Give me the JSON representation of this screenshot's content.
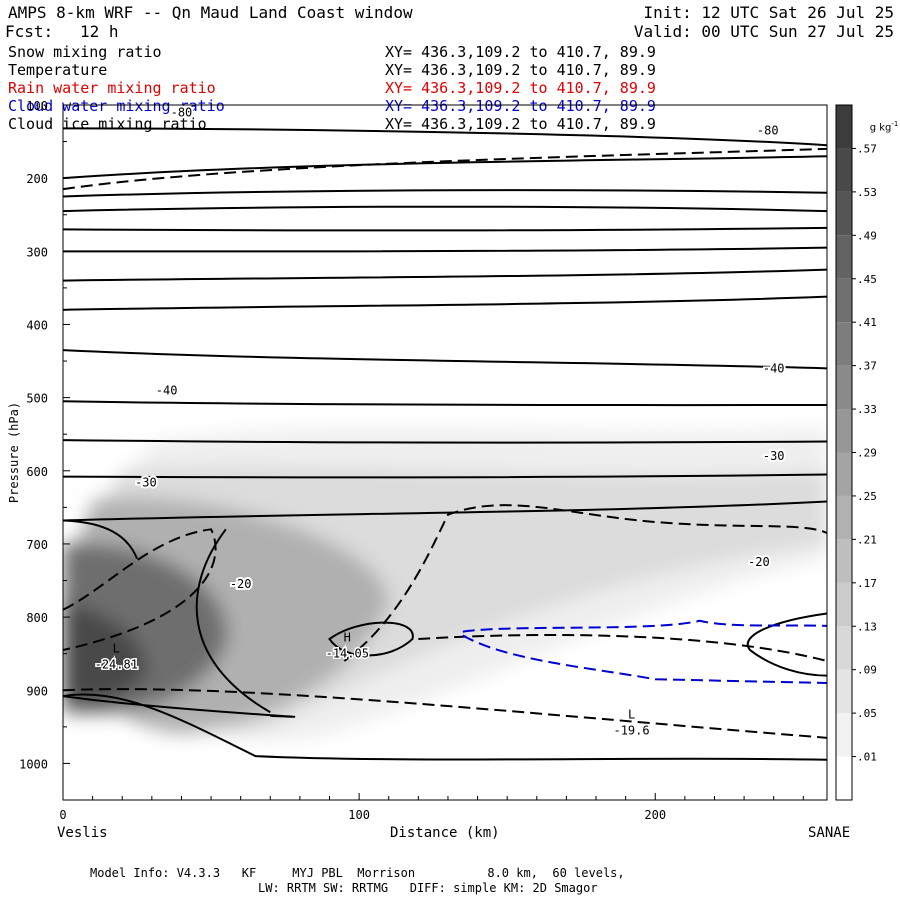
{
  "header": {
    "title": "AMPS 8-km WRF -- Qn Maud Land Coast window",
    "init": "Init: 12 UTC Sat 26 Jul 25",
    "fcst_label": "Fcst:",
    "fcst_value": "12 h",
    "valid": "Valid: 00 UTC Sun 27 Jul 25"
  },
  "fields": [
    {
      "name": "Snow mixing ratio",
      "xy": "XY= 436.3,109.2 to 410.7, 89.9",
      "color": "#000000"
    },
    {
      "name": "Temperature",
      "xy": "XY= 436.3,109.2 to 410.7, 89.9",
      "color": "#000000"
    },
    {
      "name": "Rain water mixing ratio",
      "xy": "XY= 436.3,109.2 to 410.7, 89.9",
      "color": "#e00000"
    },
    {
      "name": "Cloud water mixing ratio",
      "xy": "XY= 436.3,109.2 to 410.7, 89.9",
      "color": "#0000d0"
    },
    {
      "name": "Cloud ice mixing ratio",
      "xy": "XY= 436.3,109.2 to 410.7, 89.9",
      "color": "#000000"
    }
  ],
  "footer": {
    "line1": "Model Info: V4.3.3   KF     MYJ PBL  Morrison          8.0 km,  60 levels,",
    "line2": "LW: RRTM SW: RRTMG   DIFF: simple KM: 2D Smagor"
  },
  "chart_data": {
    "type": "contour",
    "xlabel": "Distance (km)",
    "ylabel": "Pressure (hPa)",
    "xlim": [
      0,
      258
    ],
    "ylim": [
      1050,
      100
    ],
    "x_ticks": [
      0,
      100,
      200
    ],
    "y_ticks": [
      100,
      200,
      300,
      400,
      500,
      600,
      700,
      800,
      900,
      1000
    ],
    "endpoint_labels": {
      "left": "Veslis",
      "right": "SANAE"
    },
    "colorbar": {
      "unit": "g kg",
      "unit_exp": "-1",
      "levels": [
        ".01",
        ".05",
        ".09",
        ".13",
        ".17",
        ".21",
        ".25",
        ".29",
        ".33",
        ".37",
        ".41",
        ".45",
        ".49",
        ".53",
        ".57"
      ]
    },
    "temperature_labels": [
      {
        "text": "-80",
        "x": 40,
        "p": 110
      },
      {
        "text": "-80",
        "x": 238,
        "p": 135
      },
      {
        "text": "-40",
        "x": 35,
        "p": 490
      },
      {
        "text": "-40",
        "x": 240,
        "p": 460
      },
      {
        "text": "-30",
        "x": 28,
        "p": 616
      },
      {
        "text": "-30",
        "x": 240,
        "p": 580
      },
      {
        "text": "-20",
        "x": 60,
        "p": 755
      },
      {
        "text": "-20",
        "x": 235,
        "p": 725
      }
    ],
    "extrema": [
      {
        "type": "L",
        "value": "-24.81",
        "x": 18,
        "p": 865
      },
      {
        "type": "H",
        "value": "-14.05",
        "x": 96,
        "p": 850
      },
      {
        "type": "L",
        "value": "-19.6",
        "x": 192,
        "p": 955
      }
    ],
    "isotherm_pressures_left": [
      200,
      225,
      245,
      270,
      300,
      340,
      380,
      435,
      505,
      558,
      608,
      668
    ],
    "isotherm_pressures_right": [
      170,
      220,
      245,
      268,
      295,
      325,
      362,
      460,
      510,
      560,
      605,
      642
    ]
  }
}
